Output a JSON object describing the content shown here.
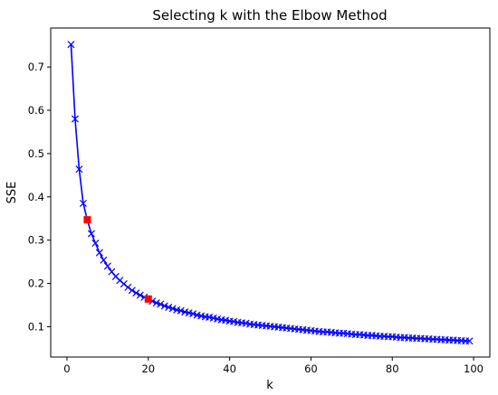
{
  "chart_data": {
    "type": "line",
    "title": "Selecting k with the Elbow Method",
    "xlabel": "k",
    "ylabel": "SSE",
    "xlim": [
      -4,
      104
    ],
    "ylim": [
      0.03,
      0.79
    ],
    "xticks": [
      0,
      20,
      40,
      60,
      80,
      100
    ],
    "yticks": [
      0.1,
      0.2,
      0.3,
      0.4,
      0.5,
      0.6,
      0.7
    ],
    "grid": false,
    "legend": "none",
    "series": [
      {
        "color": "#0000ff",
        "marker": "x",
        "x": [
          1,
          2,
          3,
          4,
          5,
          6,
          7,
          8,
          9,
          10,
          11,
          12,
          13,
          14,
          15,
          16,
          17,
          18,
          19,
          20,
          21,
          22,
          23,
          24,
          25,
          26,
          27,
          28,
          29,
          30,
          31,
          32,
          33,
          34,
          35,
          36,
          37,
          38,
          39,
          40,
          41,
          42,
          43,
          44,
          45,
          46,
          47,
          48,
          49,
          50,
          51,
          52,
          53,
          54,
          55,
          56,
          57,
          58,
          59,
          60,
          61,
          62,
          63,
          64,
          65,
          66,
          67,
          68,
          69,
          70,
          71,
          72,
          73,
          74,
          75,
          76,
          77,
          78,
          79,
          80,
          81,
          82,
          83,
          84,
          85,
          86,
          87,
          88,
          89,
          90,
          91,
          92,
          93,
          94,
          95,
          96,
          97,
          98,
          99
        ],
        "y": [
          0.752,
          0.58,
          0.464,
          0.385,
          0.347,
          0.315,
          0.293,
          0.271,
          0.254,
          0.24,
          0.227,
          0.216,
          0.207,
          0.199,
          0.191,
          0.184,
          0.178,
          0.173,
          0.168,
          0.164,
          0.159,
          0.155,
          0.152,
          0.148,
          0.145,
          0.142,
          0.139,
          0.137,
          0.134,
          0.132,
          0.13,
          0.127,
          0.125,
          0.123,
          0.122,
          0.12,
          0.118,
          0.116,
          0.115,
          0.113,
          0.112,
          0.11,
          0.109,
          0.108,
          0.106,
          0.105,
          0.104,
          0.103,
          0.102,
          0.101,
          0.1,
          0.099,
          0.098,
          0.097,
          0.096,
          0.095,
          0.094,
          0.093,
          0.092,
          0.091,
          0.09,
          0.089,
          0.088,
          0.088,
          0.087,
          0.086,
          0.085,
          0.085,
          0.084,
          0.083,
          0.082,
          0.082,
          0.081,
          0.08,
          0.08,
          0.079,
          0.078,
          0.078,
          0.077,
          0.077,
          0.076,
          0.075,
          0.075,
          0.074,
          0.074,
          0.073,
          0.073,
          0.072,
          0.072,
          0.071,
          0.071,
          0.07,
          0.07,
          0.069,
          0.069,
          0.068,
          0.068,
          0.067,
          0.067
        ]
      }
    ],
    "highlights": {
      "color": "#ff0000",
      "marker": "square",
      "points": [
        {
          "x": 5,
          "y": 0.347
        },
        {
          "x": 20,
          "y": 0.164
        }
      ]
    }
  }
}
